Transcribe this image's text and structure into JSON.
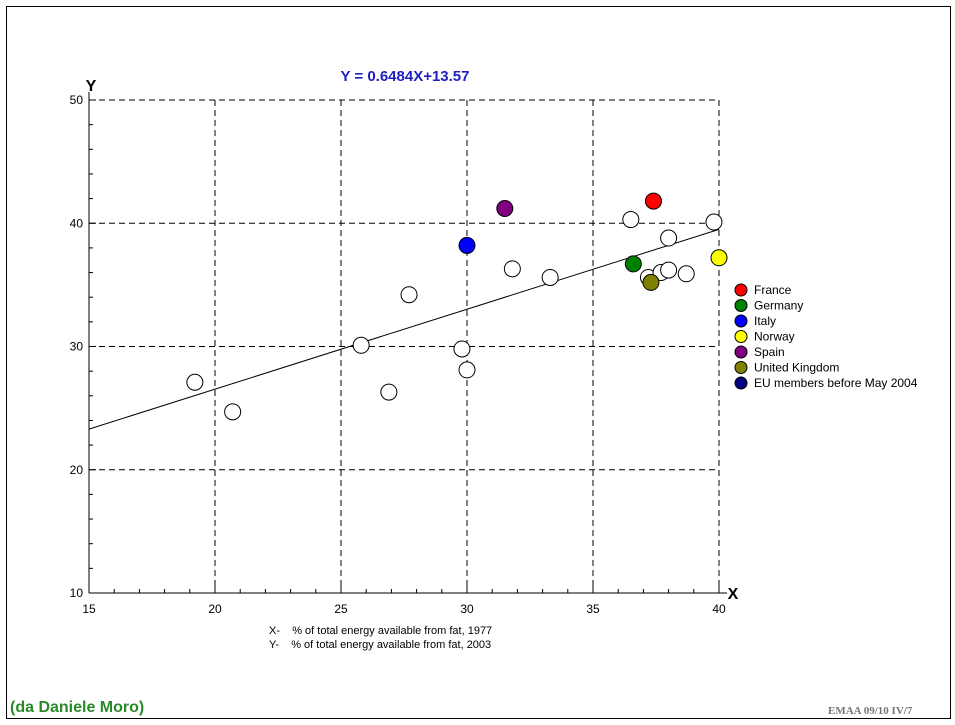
{
  "chart_data": {
    "type": "scatter",
    "title": "Y = 0.6484X+13.57",
    "xlabel": "X",
    "ylabel": "Y",
    "xlim": [
      15,
      40
    ],
    "ylim": [
      10,
      50
    ],
    "xticks": [
      15,
      20,
      25,
      30,
      35,
      40
    ],
    "yticks": [
      10,
      20,
      30,
      40,
      50
    ],
    "grid": true,
    "legend_position": "right",
    "regression": {
      "slope": 0.6484,
      "intercept": 13.57
    },
    "series": [
      {
        "name": "France",
        "color": "#ff0000",
        "points": [
          {
            "x": 37.4,
            "y": 41.8
          }
        ]
      },
      {
        "name": "Germany",
        "color": "#008000",
        "points": [
          {
            "x": 36.6,
            "y": 36.7
          }
        ]
      },
      {
        "name": "Italy",
        "color": "#0000ff",
        "points": [
          {
            "x": 30.0,
            "y": 38.2
          }
        ]
      },
      {
        "name": "Norway",
        "color": "#ffff00",
        "points": [
          {
            "x": 40.0,
            "y": 37.2
          }
        ]
      },
      {
        "name": "Spain",
        "color": "#800080",
        "points": [
          {
            "x": 31.5,
            "y": 41.2
          }
        ]
      },
      {
        "name": "United Kingdom",
        "color": "#808000",
        "points": [
          {
            "x": 37.3,
            "y": 35.2
          }
        ]
      },
      {
        "name": "EU members before May 2004",
        "color": "#000080",
        "points": []
      },
      {
        "color": "#ffffff",
        "points": [
          {
            "x": 19.2,
            "y": 27.1
          },
          {
            "x": 20.7,
            "y": 24.7
          },
          {
            "x": 25.8,
            "y": 30.1
          },
          {
            "x": 26.9,
            "y": 26.3
          },
          {
            "x": 27.7,
            "y": 34.2
          },
          {
            "x": 29.8,
            "y": 29.8
          },
          {
            "x": 30.0,
            "y": 28.1
          },
          {
            "x": 31.8,
            "y": 36.3
          },
          {
            "x": 33.3,
            "y": 35.6
          },
          {
            "x": 36.5,
            "y": 40.3
          },
          {
            "x": 37.2,
            "y": 35.6
          },
          {
            "x": 37.7,
            "y": 36.0
          },
          {
            "x": 38.0,
            "y": 36.2
          },
          {
            "x": 38.7,
            "y": 35.9
          },
          {
            "x": 38.0,
            "y": 38.8
          },
          {
            "x": 39.8,
            "y": 40.1
          }
        ]
      }
    ],
    "axis_notes": [
      "X-    % of total energy available from fat, 1977",
      "Y-    % of total energy available from fat, 2003"
    ]
  },
  "credit": "(da Daniele Moro)",
  "footer_id": "EMAA 09/10   IV/7"
}
